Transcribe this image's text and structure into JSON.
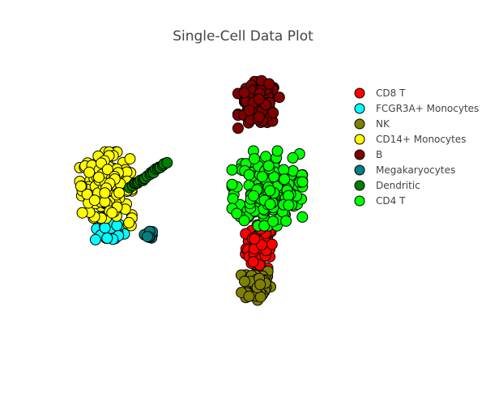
{
  "chart_data": {
    "type": "scatter",
    "title": "Single-Cell Data Plot",
    "xlabel": "",
    "ylabel": "",
    "grid": false,
    "axes_visible": false,
    "legend_placement": "top-right",
    "xlim": [
      0,
      100
    ],
    "ylim": [
      0,
      100
    ],
    "series": [
      {
        "name": "CD8 T",
        "color": "#ff0000",
        "clusters": [
          {
            "cx": 70.8,
            "cy": 35.4,
            "sx": 2.5,
            "sy": 4.0,
            "n": 70
          }
        ]
      },
      {
        "name": "FCGR3A+ Monocytes",
        "color": "#00ffff",
        "clusters": [
          {
            "cx": 16.1,
            "cy": 41.6,
            "sx": 2.6,
            "sy": 2.2,
            "n": 40
          }
        ]
      },
      {
        "name": "NK",
        "color": "#808000",
        "clusters": [
          {
            "cx": 69.8,
            "cy": 22.4,
            "sx": 2.6,
            "sy": 3.2,
            "n": 55
          }
        ]
      },
      {
        "name": "CD14+ Monocytes",
        "color": "#ffff00",
        "clusters": [
          {
            "cx": 14.9,
            "cy": 57.6,
            "sx": 4.3,
            "sy": 5.3,
            "n": 200
          },
          {
            "cx": 23.5,
            "cy": 43.2,
            "sx": 0.5,
            "sy": 0.5,
            "n": 3
          }
        ]
      },
      {
        "name": "B",
        "color": "#800000",
        "clusters": [
          {
            "cx": 70.4,
            "cy": 86.0,
            "sx": 3.4,
            "sy": 3.8,
            "n": 110
          }
        ]
      },
      {
        "name": "Megakaryocytes",
        "color": "#008080",
        "clusters": [
          {
            "cx": 30.7,
            "cy": 40.2,
            "sx": 0.8,
            "sy": 0.7,
            "n": 10
          }
        ]
      },
      {
        "name": "Dendritic",
        "color": "#008000",
        "line": {
          "from": [
            24.0,
            56.8
          ],
          "to": [
            36.8,
            65.3
          ],
          "n": 22
        }
      },
      {
        "name": "CD4 T",
        "color": "#00ff00",
        "clusters": [
          {
            "cx": 73.5,
            "cy": 56.4,
            "sx": 5.8,
            "sy": 6.0,
            "n": 260
          }
        ]
      }
    ]
  }
}
